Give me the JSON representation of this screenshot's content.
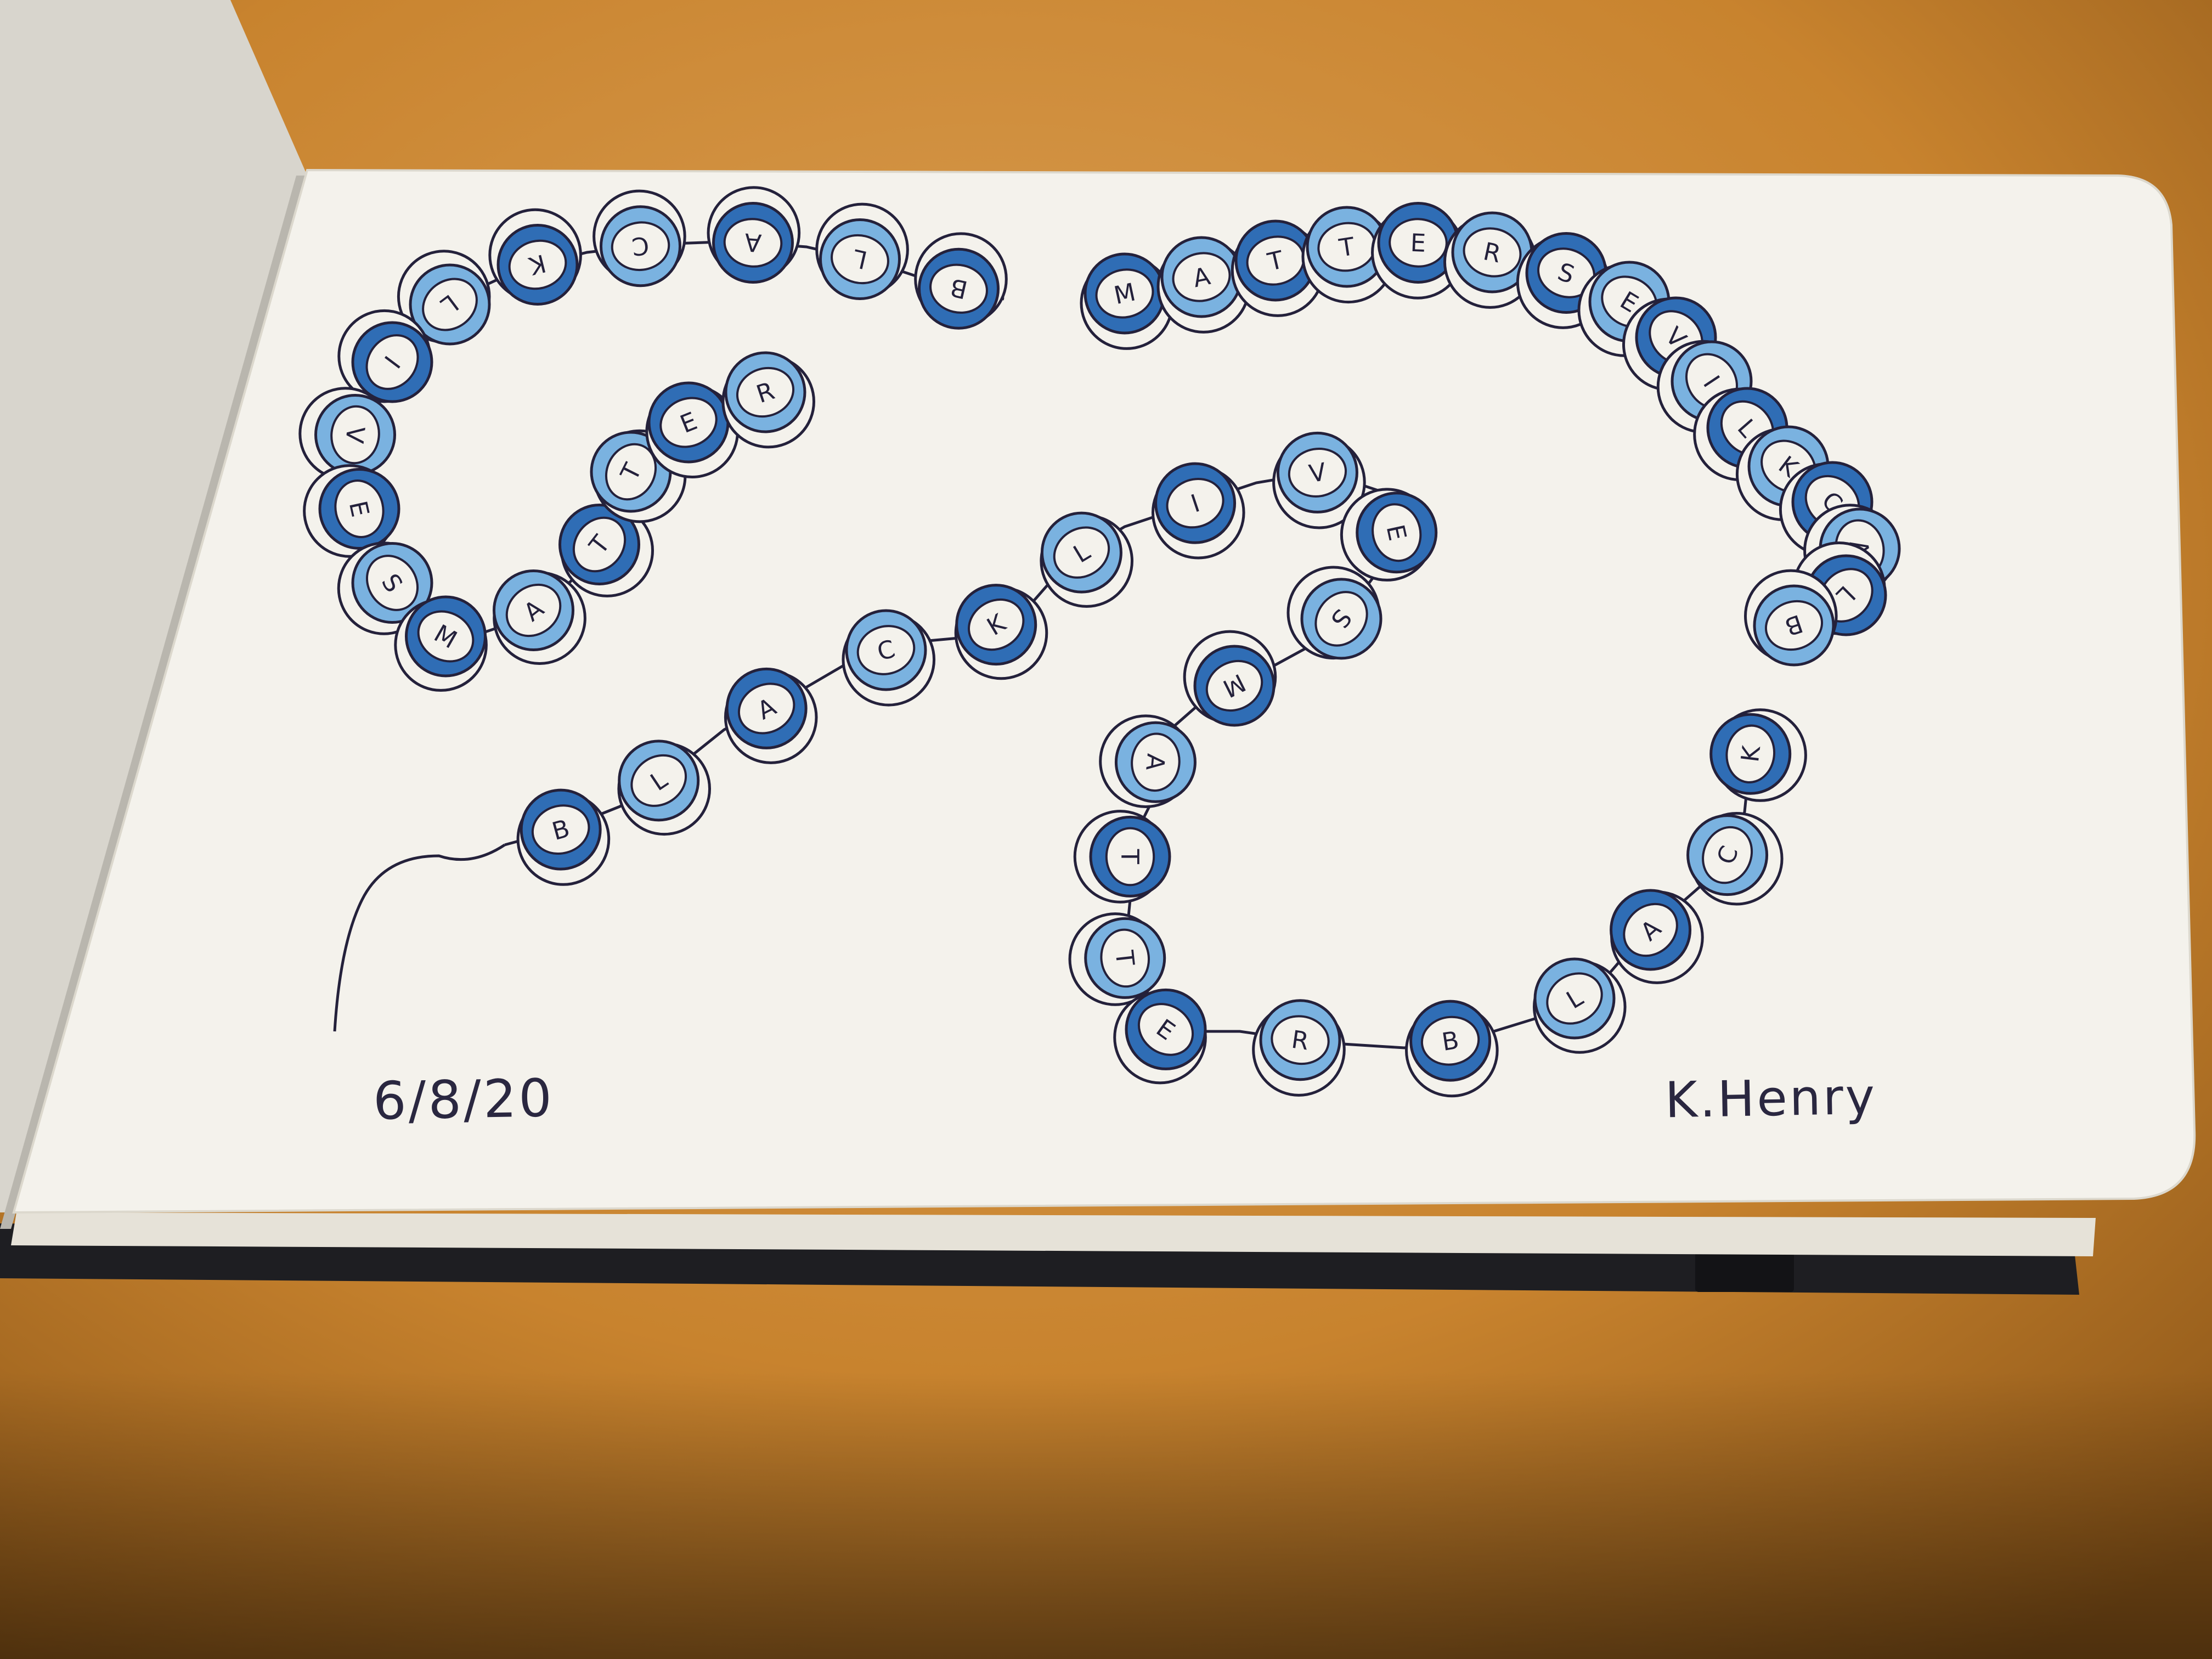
{
  "drawing": {
    "colors": {
      "table": "#c8832e",
      "table_light": "#d89a48",
      "paper": "#f4f2ec",
      "ink": "#24213b",
      "blue_dark": "#2f6db5",
      "blue_light": "#7ab2e0",
      "book_cover": "#1e1e22"
    },
    "bead_strings": [
      {
        "name": "string-1",
        "letters": [
          "B",
          "L",
          "A",
          "C",
          "K",
          "L",
          "I",
          "V",
          "E",
          "S",
          "M",
          "A",
          "T",
          "T",
          "E",
          "R"
        ]
      },
      {
        "name": "string-2",
        "letters": [
          "M",
          "A",
          "T",
          "T",
          "E",
          "R",
          "S",
          "E",
          "V",
          "I",
          "L",
          "K",
          "C",
          "A",
          "L",
          "B"
        ]
      },
      {
        "name": "string-3",
        "letters": [
          "B",
          "L",
          "A",
          "C",
          "K",
          "L",
          "I",
          "V",
          "E",
          "S",
          "M",
          "A",
          "T",
          "T",
          "E",
          "R",
          "B",
          "L",
          "A",
          "C",
          "K"
        ]
      }
    ],
    "date_text": "6/8/20",
    "signature_text": "K.Henry"
  }
}
